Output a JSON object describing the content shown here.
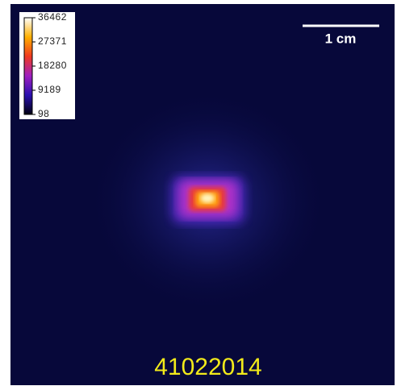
{
  "colorbar": {
    "ticks": [
      36462,
      27371,
      18280,
      9189,
      98
    ]
  },
  "scale_bar": {
    "label": "1 cm"
  },
  "caption": "41022014"
}
